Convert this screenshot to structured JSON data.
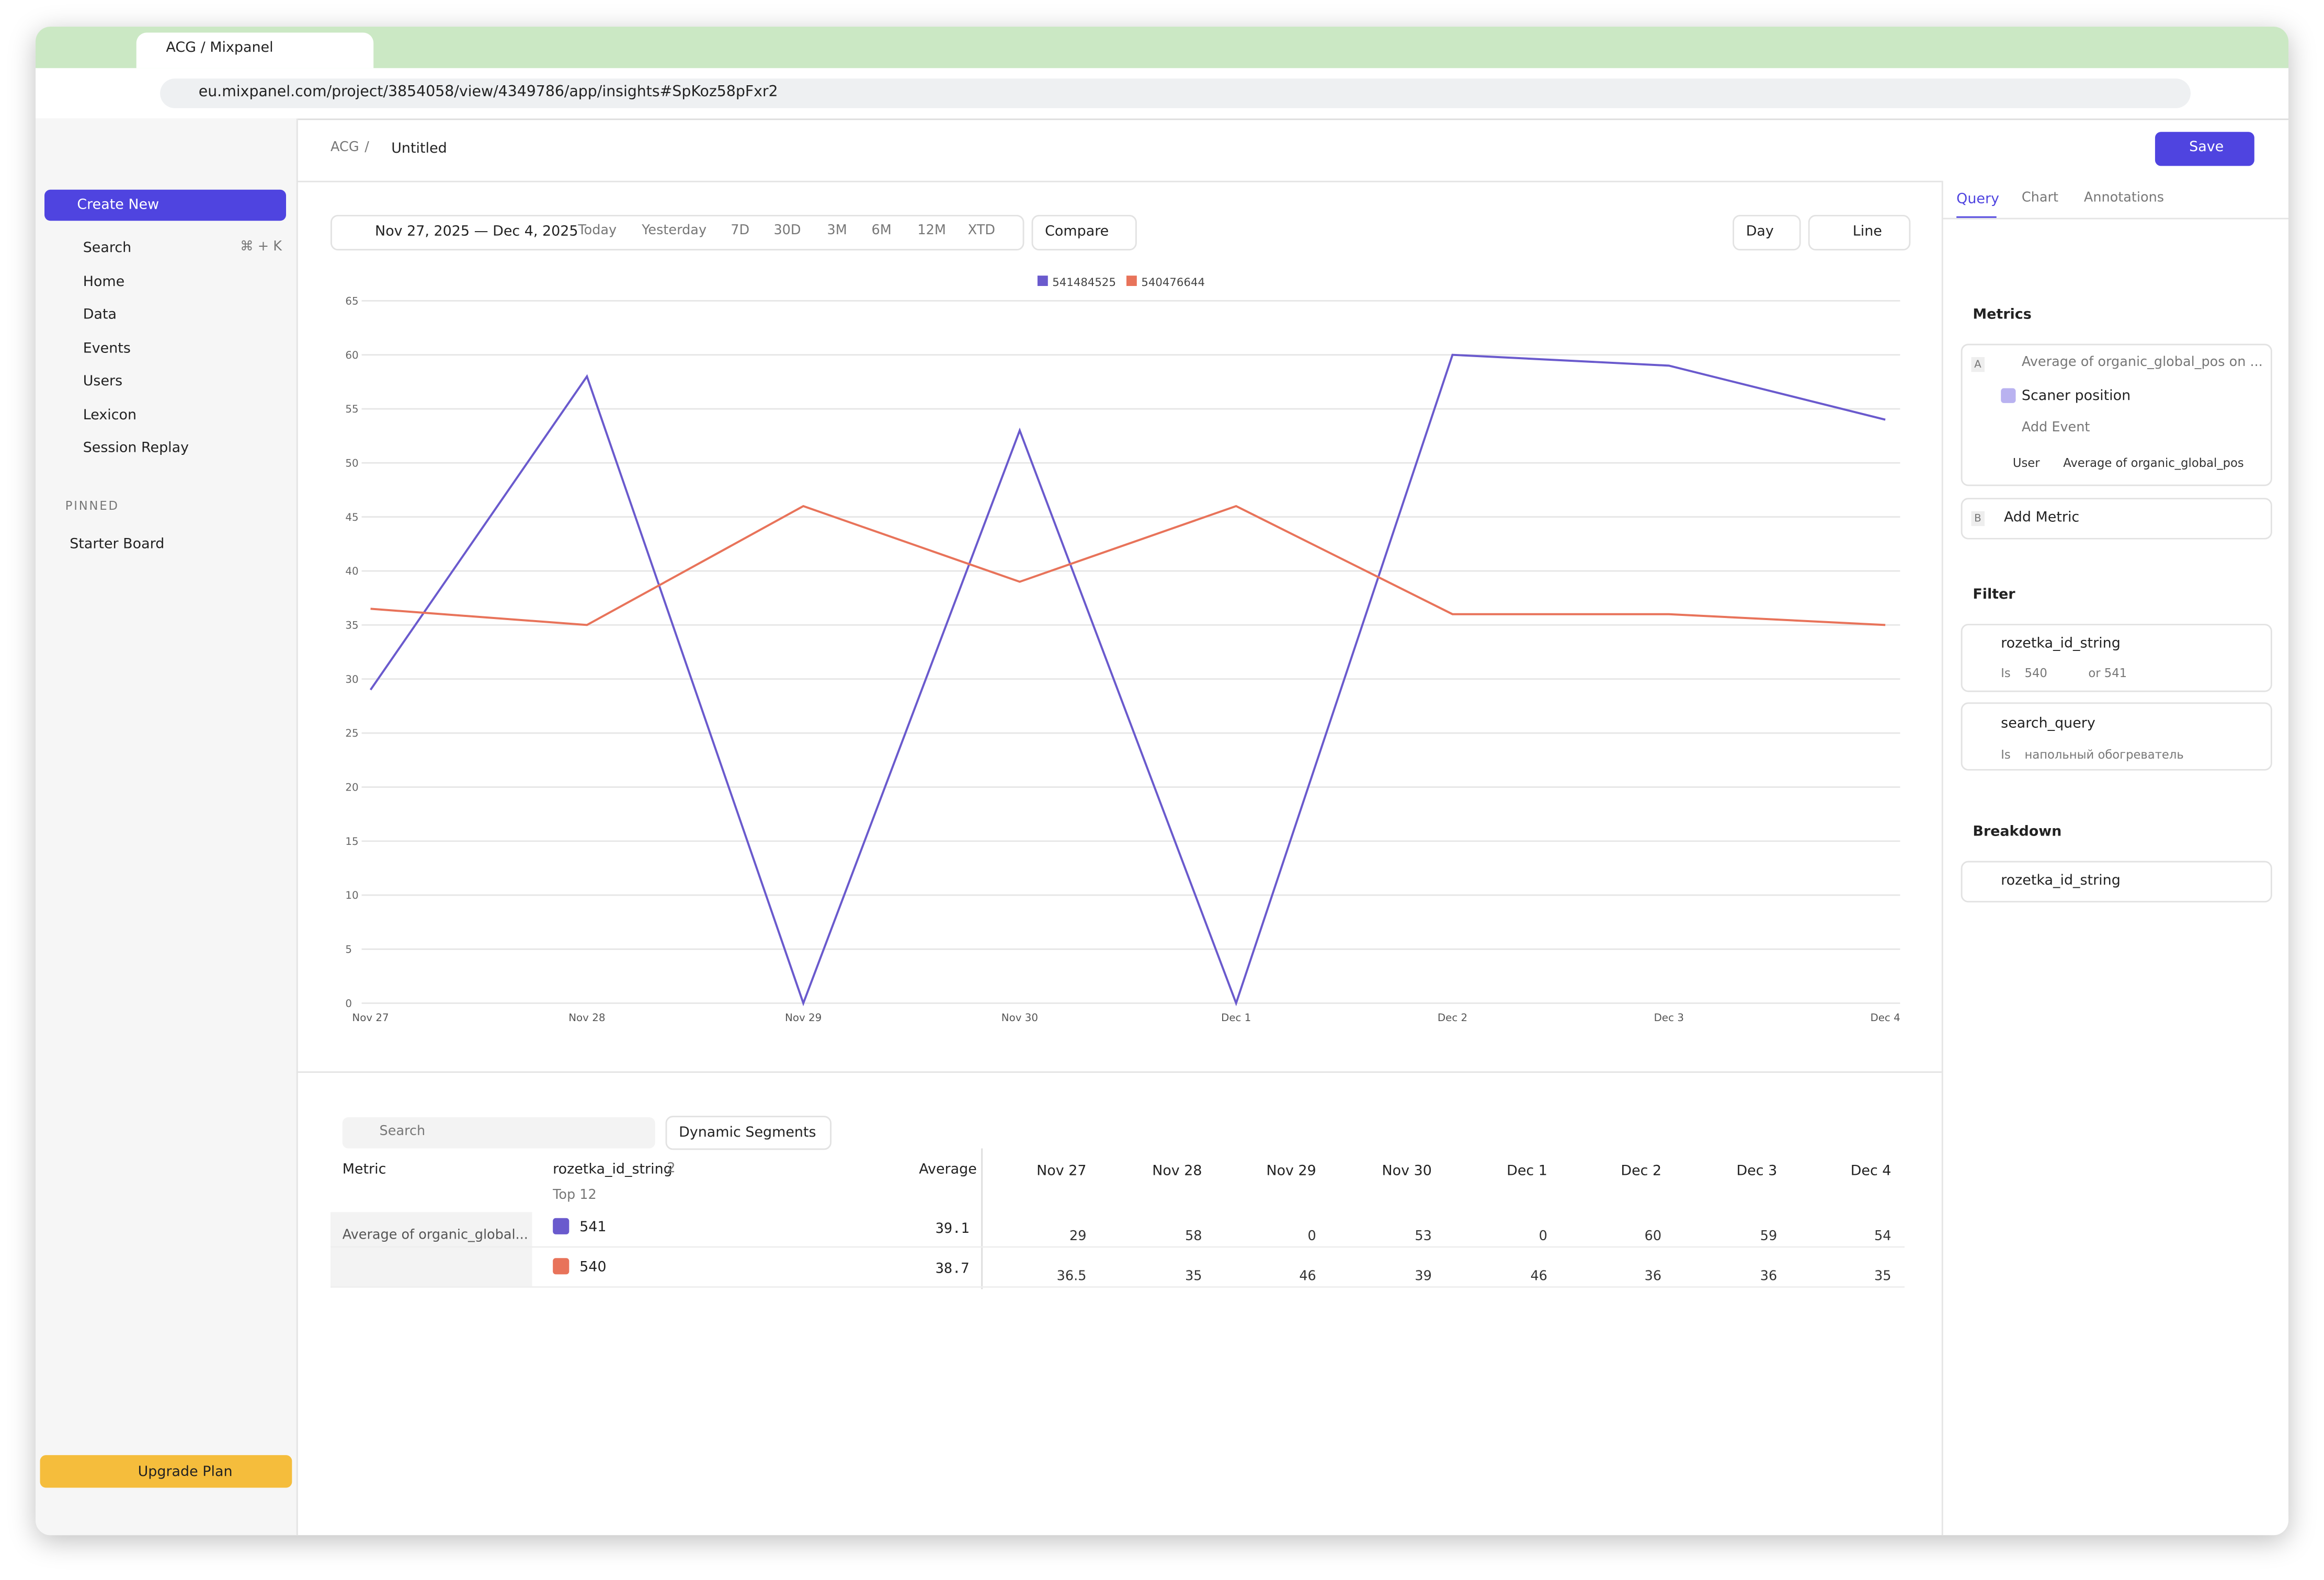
{
  "browser": {
    "tab_title": "ACG / Mixpanel",
    "url": "eu.mixpanel.com/project/3854058/view/4349786/app/insights#SpKoz58pFxr2"
  },
  "sidebar": {
    "create_new": "Create New",
    "search": "Search",
    "search_shortcut": "⌘ + K",
    "nav": [
      "Home",
      "Data",
      "Events",
      "Users",
      "Lexicon",
      "Session Replay"
    ],
    "pinned_label": "PINNED",
    "pinned": [
      "Starter Board"
    ],
    "upgrade": "Upgrade Plan"
  },
  "header": {
    "breadcrumb": [
      "ACG",
      "Untitled"
    ],
    "save": "Save"
  },
  "toolbar": {
    "date_range": "Nov 27, 2025 — Dec 4, 2025",
    "ranges": [
      "Today",
      "Yesterday",
      "7D",
      "30D",
      "3M",
      "6M",
      "12M",
      "XTD"
    ],
    "compare": "Compare",
    "interval": "Day",
    "chart_type": "Line"
  },
  "chart_data": {
    "type": "line",
    "categories": [
      "Nov 27",
      "Nov 28",
      "Nov 29",
      "Nov 30",
      "Dec 1",
      "Dec 2",
      "Dec 3",
      "Dec 4"
    ],
    "series": [
      {
        "name": "541484525",
        "color": "#6a5acd",
        "values": [
          29,
          58,
          0,
          53,
          0,
          60,
          59,
          54
        ]
      },
      {
        "name": "540476644",
        "color": "#e8735a",
        "values": [
          36.5,
          35,
          46,
          39,
          46,
          36,
          36,
          35
        ]
      }
    ],
    "ylim": [
      0,
      65
    ],
    "yticks": [
      0,
      5,
      10,
      15,
      20,
      25,
      30,
      35,
      40,
      45,
      50,
      55,
      60,
      65
    ],
    "grid": true,
    "legend": "top"
  },
  "table": {
    "search": "Search",
    "segments_button": "Dynamic Segments",
    "headers": {
      "metric": "Metric",
      "breakdown": "rozetka_id_string",
      "breakdown_count": "2",
      "top": "Top 12",
      "average": "Average"
    },
    "metric": "Average of organic_global...",
    "rows": [
      {
        "segment": "541",
        "average": "39.1"
      },
      {
        "segment": "540",
        "average": "38.7"
      }
    ]
  },
  "panel": {
    "tabs": [
      "Query",
      "Chart",
      "Annotations"
    ],
    "metrics_title": "Metrics",
    "metric_letter": "A",
    "metric_name": "Average of organic_global_pos on ...",
    "event": "Scaner position",
    "add_event": "Add Event",
    "measure_scope": "User",
    "measure": "Average of organic_global_pos",
    "add_letter": "B",
    "add_metric": "Add Metric",
    "filter_title": "Filter",
    "filters": [
      {
        "property": "rozetka_id_string",
        "operator": "Is",
        "value": "540",
        "value2": "or 541"
      },
      {
        "property": "search_query",
        "operator": "Is",
        "value": "напольный обогреватель"
      }
    ],
    "breakdown_title": "Breakdown",
    "breakdown": "rozetka_id_string"
  }
}
